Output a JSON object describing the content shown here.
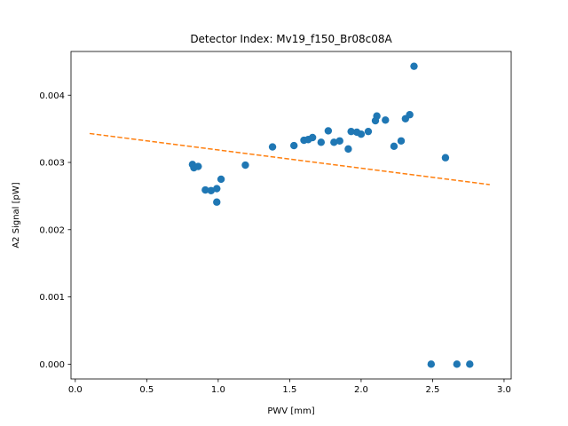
{
  "chart_data": {
    "type": "scatter",
    "title": "Detector Index: Mv19_f150_Br08c08A",
    "xlabel": "PWV [mm]",
    "ylabel": "A2 Signal [pW]",
    "xlim": [
      -0.03,
      3.05
    ],
    "ylim": [
      -0.00022,
      0.00465
    ],
    "xticks": [
      0.0,
      0.5,
      1.0,
      1.5,
      2.0,
      2.5,
      3.0
    ],
    "xtick_labels": [
      "0.0",
      "0.5",
      "1.0",
      "1.5",
      "2.0",
      "2.5",
      "3.0"
    ],
    "yticks": [
      0.0,
      0.001,
      0.002,
      0.003,
      0.004
    ],
    "ytick_labels": [
      "0.000",
      "0.001",
      "0.002",
      "0.003",
      "0.004"
    ],
    "grid": false,
    "series": [
      {
        "name": "data",
        "kind": "scatter",
        "color": "#1f77b4",
        "points": [
          [
            0.82,
            0.00297
          ],
          [
            0.83,
            0.00292
          ],
          [
            0.86,
            0.00294
          ],
          [
            0.91,
            0.00259
          ],
          [
            0.95,
            0.00258
          ],
          [
            0.99,
            0.00261
          ],
          [
            0.99,
            0.00241
          ],
          [
            1.02,
            0.00275
          ],
          [
            1.19,
            0.00296
          ],
          [
            1.38,
            0.00323
          ],
          [
            1.53,
            0.00325
          ],
          [
            1.6,
            0.00333
          ],
          [
            1.63,
            0.00334
          ],
          [
            1.66,
            0.00337
          ],
          [
            1.72,
            0.0033
          ],
          [
            1.77,
            0.00347
          ],
          [
            1.81,
            0.0033
          ],
          [
            1.85,
            0.00332
          ],
          [
            1.91,
            0.0032
          ],
          [
            1.93,
            0.00346
          ],
          [
            1.97,
            0.00345
          ],
          [
            2.0,
            0.00342
          ],
          [
            2.05,
            0.00346
          ],
          [
            2.1,
            0.00362
          ],
          [
            2.11,
            0.00369
          ],
          [
            2.17,
            0.00363
          ],
          [
            2.23,
            0.00324
          ],
          [
            2.28,
            0.00332
          ],
          [
            2.31,
            0.00365
          ],
          [
            2.34,
            0.00371
          ],
          [
            2.37,
            0.00443
          ],
          [
            2.59,
            0.00307
          ],
          [
            2.49,
            0.0
          ],
          [
            2.67,
            0.0
          ],
          [
            2.76,
            0.0
          ]
        ]
      },
      {
        "name": "fit",
        "kind": "line",
        "style": "dashed",
        "color": "#ff7f0e",
        "points": [
          [
            0.1,
            0.00343
          ],
          [
            2.9,
            0.00267
          ]
        ]
      }
    ]
  }
}
